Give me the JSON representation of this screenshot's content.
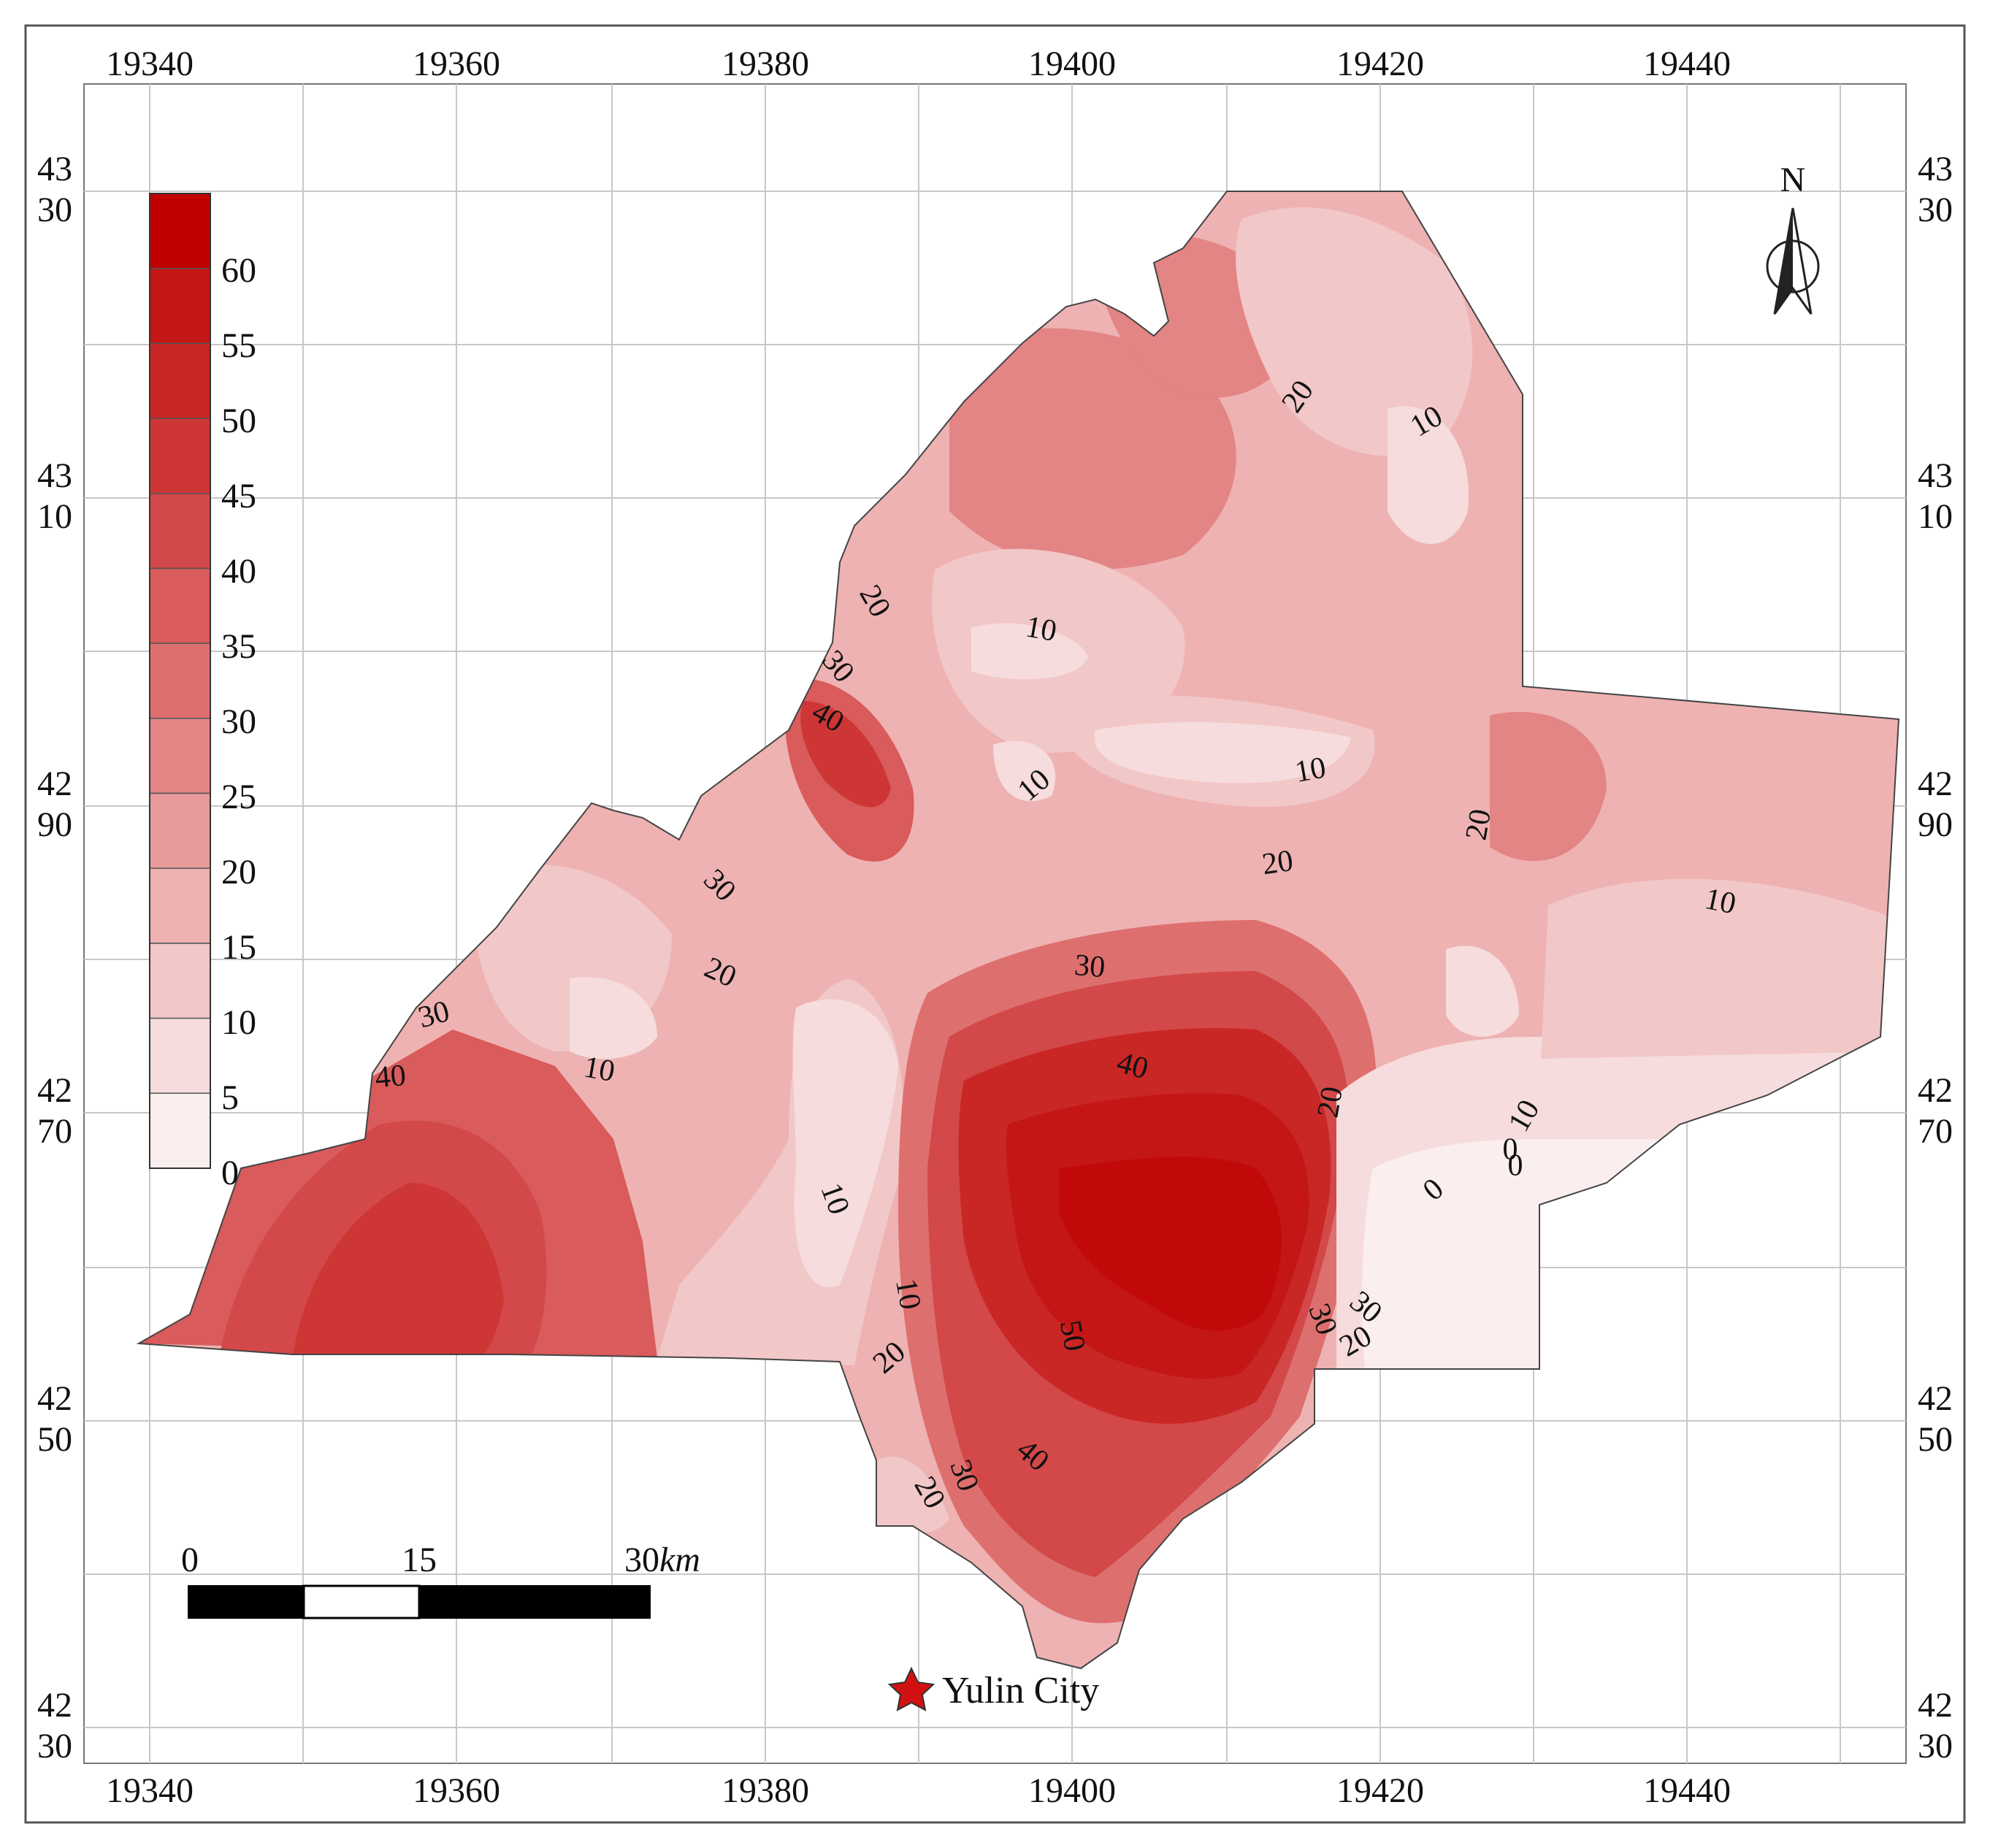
{
  "map": {
    "x_ticks_top": [
      "19340",
      "19360",
      "19380",
      "19400",
      "19420",
      "19440"
    ],
    "x_ticks_bottom": [
      "19340",
      "19360",
      "19380",
      "19400",
      "19420",
      "19440"
    ],
    "y_ticks": [
      [
        "43",
        "30"
      ],
      [
        "43",
        "10"
      ],
      [
        "42",
        "90"
      ],
      [
        "42",
        "70"
      ],
      [
        "42",
        "50"
      ],
      [
        "42",
        "30"
      ]
    ],
    "north_label": "N",
    "legend": {
      "labels": [
        "60",
        "55",
        "50",
        "45",
        "40",
        "35",
        "30",
        "25",
        "20",
        "15",
        "10",
        "5",
        "0"
      ],
      "colors": [
        "#c00000",
        "#c41616",
        "#c92626",
        "#ce3636",
        "#d34848",
        "#d95b5b",
        "#de6f6f",
        "#e38585",
        "#e99b9b",
        "#eeb2b2",
        "#f2c7c7",
        "#f6dcdc",
        "#faeeee"
      ]
    },
    "scale_bar": {
      "labels": [
        "0",
        "15",
        "30"
      ],
      "unit": "km"
    },
    "city": {
      "name": "Yulin City",
      "marker_color": "#d11111"
    },
    "contour_labels": [
      "20",
      "10",
      "20",
      "10",
      "30",
      "40",
      "10",
      "10",
      "20",
      "20",
      "10",
      "30",
      "20",
      "30",
      "40",
      "20",
      "10",
      "30",
      "40",
      "10",
      "50",
      "10",
      "20",
      "30",
      "40",
      "20",
      "30",
      "10",
      "30",
      "20",
      "0",
      "0",
      "0"
    ]
  }
}
